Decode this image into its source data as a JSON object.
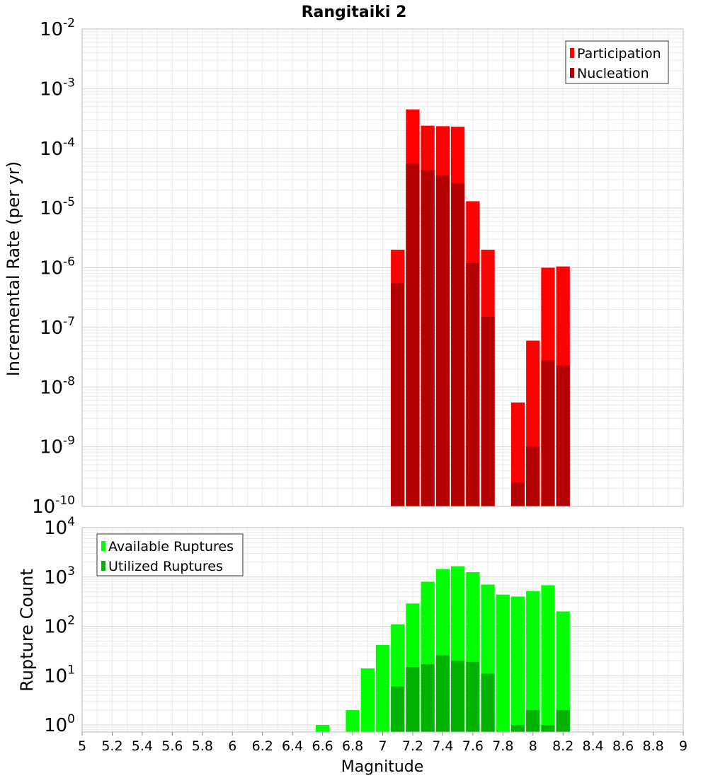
{
  "chart_data": [
    {
      "type": "bar",
      "title": "Rangitaiki 2",
      "ylabel": "Incremental Rate (per yr)",
      "yscale": "log",
      "ylim": [
        1e-10,
        0.01
      ],
      "ytick_exponents": [
        -10,
        -9,
        -8,
        -7,
        -6,
        -5,
        -4,
        -3,
        -2
      ],
      "bin_width": 0.1,
      "legend": {
        "placement": "top-right",
        "entries": [
          "Participation",
          "Nucleation"
        ]
      },
      "series": [
        {
          "name": "Participation",
          "color": "#ff0000",
          "x": [
            7.1,
            7.2,
            7.3,
            7.4,
            7.5,
            7.6,
            7.7,
            7.9,
            8.0,
            8.1,
            8.2
          ],
          "values": [
            2e-06,
            0.00045,
            0.00024,
            0.000235,
            0.00023,
            1.3e-05,
            2e-06,
            5.5e-09,
            6e-08,
            1e-06,
            1.05e-06
          ]
        },
        {
          "name": "Nucleation",
          "color": "#b30000",
          "x": [
            7.1,
            7.2,
            7.3,
            7.4,
            7.5,
            7.6,
            7.7,
            7.9,
            8.0,
            8.1,
            8.2
          ],
          "values": [
            5.5e-07,
            5.5e-05,
            4.3e-05,
            3.5e-05,
            2.6e-05,
            1.2e-06,
            1.5e-07,
            2.5e-10,
            1e-09,
            2.8e-08,
            2.3e-08
          ]
        }
      ]
    },
    {
      "type": "bar",
      "ylabel": "Rupture Count",
      "xlabel": "Magnitude",
      "yscale": "log",
      "ylim": [
        0.72,
        10000
      ],
      "ytick_exponents": [
        0,
        1,
        2,
        3,
        4
      ],
      "xlim": [
        5,
        9
      ],
      "xticks": [
        "5",
        "5.2",
        "5.4",
        "5.6",
        "5.8",
        "6",
        "6.2",
        "6.4",
        "6.6",
        "6.8",
        "7",
        "7.2",
        "7.4",
        "7.6",
        "7.8",
        "8",
        "8.2",
        "8.4",
        "8.6",
        "8.8",
        "9"
      ],
      "bin_width": 0.1,
      "legend": {
        "placement": "top-left",
        "entries": [
          "Available Ruptures",
          "Utilized Ruptures"
        ]
      },
      "series": [
        {
          "name": "Available Ruptures",
          "color": "#00ff00",
          "x": [
            6.6,
            6.8,
            6.9,
            7.0,
            7.1,
            7.2,
            7.3,
            7.4,
            7.5,
            7.6,
            7.7,
            7.8,
            7.9,
            8.0,
            8.1,
            8.2
          ],
          "values": [
            1,
            2,
            14,
            42,
            110,
            290,
            800,
            1450,
            1650,
            1250,
            700,
            440,
            400,
            520,
            680,
            200
          ]
        },
        {
          "name": "Utilized Ruptures",
          "color": "#00b300",
          "x": [
            7.1,
            7.2,
            7.3,
            7.4,
            7.5,
            7.6,
            7.7,
            7.9,
            8.0,
            8.1,
            8.2
          ],
          "values": [
            6,
            15,
            17,
            26,
            20,
            19,
            11,
            1,
            2,
            1,
            2
          ]
        }
      ]
    }
  ],
  "colors": {
    "grid": "#ebebeb",
    "frame": "#bdbdbd",
    "text": "#000000"
  }
}
